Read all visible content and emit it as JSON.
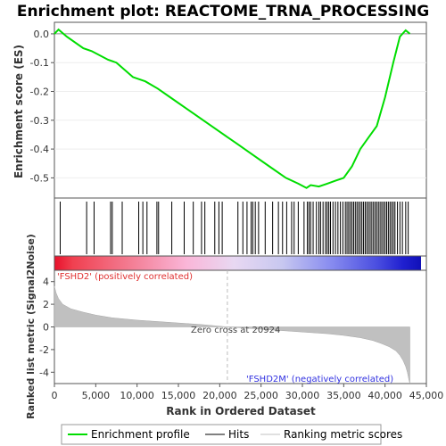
{
  "chart_data": {
    "type": "line",
    "title": "Enrichment plot: REACTOME_TRNA_PROCESSING",
    "top_panel": {
      "ylabel": "Enrichment score (ES)",
      "ylim": [
        -0.57,
        0.04
      ],
      "yticks": [
        0.0,
        -0.1,
        -0.2,
        -0.3,
        -0.4,
        -0.5
      ],
      "ytick_labels": [
        "0.0",
        "-0.1",
        "-0.2",
        "-0.3",
        "-0.4",
        "-0.5"
      ],
      "series": [
        {
          "name": "Enrichment profile",
          "color": "#00dd00",
          "x": [
            0,
            500,
            1500,
            3500,
            4500,
            6500,
            7500,
            9500,
            11000,
            12500,
            14000,
            16000,
            18000,
            20000,
            22000,
            24000,
            26000,
            28000,
            29500,
            30500,
            31000,
            32000,
            33000,
            34000,
            35000,
            36000,
            37000,
            38000,
            39000,
            40000,
            41000,
            41800,
            42500,
            43000
          ],
          "y": [
            0.0,
            0.015,
            -0.01,
            -0.05,
            -0.06,
            -0.09,
            -0.1,
            -0.15,
            -0.165,
            -0.19,
            -0.22,
            -0.26,
            -0.3,
            -0.34,
            -0.38,
            -0.42,
            -0.46,
            -0.5,
            -0.52,
            -0.535,
            -0.525,
            -0.53,
            -0.52,
            -0.51,
            -0.5,
            -0.46,
            -0.4,
            -0.36,
            -0.32,
            -0.22,
            -0.1,
            -0.01,
            0.012,
            0.0
          ]
        }
      ]
    },
    "hits": {
      "name": "Hits",
      "positions": [
        700,
        3900,
        4800,
        6800,
        7000,
        8200,
        10200,
        10700,
        11200,
        12400,
        12600,
        14200,
        15700,
        16800,
        17800,
        18200,
        19400,
        19900,
        20300,
        22200,
        22800,
        23300,
        23800,
        24000,
        24300,
        24700,
        25500,
        26400,
        27100,
        27600,
        28100,
        28700,
        29000,
        29500,
        30200,
        30600,
        30800,
        31000,
        31300,
        31700,
        32000,
        32200,
        32500,
        32800,
        33000,
        33200,
        33400,
        33700,
        34000,
        34300,
        34600,
        34900,
        35200,
        35400,
        35600,
        35800,
        36000,
        36200,
        36400,
        36600,
        36800,
        37000,
        37200,
        37400,
        37600,
        37800,
        38000,
        38200,
        38400,
        38600,
        38800,
        39000,
        39200,
        39400,
        39600,
        39800,
        40000,
        40200,
        40400,
        40600,
        40800,
        41000,
        41200,
        41500,
        41800,
        42100,
        42500,
        42800
      ]
    },
    "bottom_panel": {
      "ylabel": "Ranked list metric (Signal2Noise)",
      "ylim": [
        -5,
        5
      ],
      "yticks": [
        4,
        2,
        0,
        -2,
        -4
      ],
      "ytick_labels": [
        "4",
        "2",
        "0",
        "-2",
        "-4"
      ],
      "series": [
        {
          "name": "Ranking metric scores",
          "color": "#c0c0c0",
          "x": [
            0,
            200,
            500,
            1000,
            2000,
            3500,
            5000,
            7000,
            10000,
            13000,
            16000,
            18000,
            20924,
            24000,
            27000,
            30000,
            33000,
            35000,
            37000,
            38500,
            39500,
            40500,
            41300,
            41800,
            42200,
            42500,
            42700,
            42900,
            43000
          ],
          "y": [
            3.6,
            3.0,
            2.5,
            2.0,
            1.6,
            1.3,
            1.05,
            0.8,
            0.6,
            0.45,
            0.3,
            0.2,
            0.0,
            -0.15,
            -0.3,
            -0.45,
            -0.6,
            -0.75,
            -0.95,
            -1.2,
            -1.45,
            -1.75,
            -2.1,
            -2.5,
            -3.0,
            -3.5,
            -4.0,
            -4.7,
            -5.0
          ]
        }
      ],
      "zero_cross": 20924,
      "zero_cross_label": "Zero cross at 20924",
      "positive_label": "'FSHD2' (positively correlated)",
      "negative_label": "'FSHD2M' (negatively correlated)"
    },
    "xlabel": "Rank in Ordered Dataset",
    "xlim": [
      0,
      45000
    ],
    "xticks": [
      0,
      5000,
      10000,
      15000,
      20000,
      25000,
      30000,
      35000,
      40000,
      45000
    ],
    "xtick_labels": [
      "0",
      "5,000",
      "10,000",
      "15,000",
      "20,000",
      "25,000",
      "30,000",
      "35,000",
      "40,000",
      "45,000"
    ],
    "dataset_size": 43000,
    "legend": {
      "placement": "bottom",
      "items": [
        {
          "label": "Enrichment profile",
          "color": "#00dd00"
        },
        {
          "label": "Hits",
          "color": "#000000"
        },
        {
          "label": "Ranking metric scores",
          "color": "#c0c0c0"
        }
      ]
    }
  }
}
